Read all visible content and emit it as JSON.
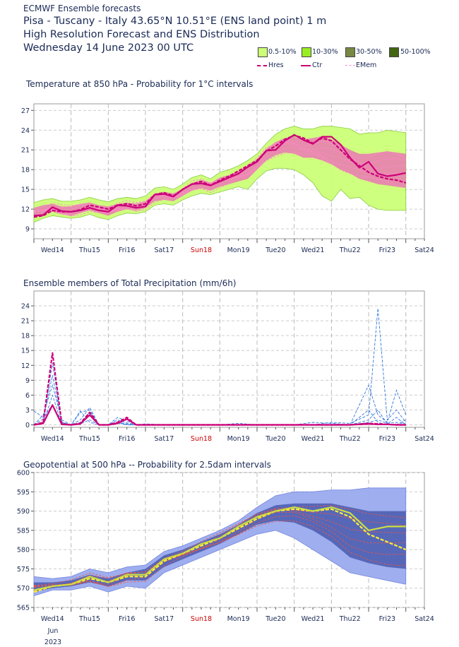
{
  "header": {
    "source": "ECMWF Ensemble forecasts",
    "location": "Pisa - Tuscany - Italy 43.65°N 10.51°E (ENS land point) 1 m",
    "subtitle": "High Resolution Forecast and ENS Distribution",
    "date": "Wednesday 14 June 2023 00 UTC"
  },
  "legend": {
    "prob_bands": [
      {
        "label": "0.5-10%",
        "color": "#ccff77"
      },
      {
        "label": "10-30%",
        "color": "#99ee22"
      },
      {
        "label": "30-50%",
        "color": "#778844"
      },
      {
        "label": "50-100%",
        "color": "#446611"
      }
    ],
    "lines": [
      {
        "label": "Hres",
        "color": "#cc0077",
        "style": "dashed"
      },
      {
        "label": "Ctr",
        "color": "#cc0077",
        "style": "solid"
      },
      {
        "label": "EMem",
        "color": "#ff88cc",
        "style": "dashed"
      }
    ]
  },
  "days": [
    "Wed14",
    "Thu15",
    "Fri16",
    "Sat17",
    "Sun18",
    "Mon19",
    "Tue20",
    "Wed21",
    "Thu22",
    "Fri23",
    "Sat24"
  ],
  "highlight_day": "Sun18",
  "highlight_color": "#cc0000",
  "date_footer": {
    "month": "Jun",
    "year": "2023"
  },
  "chart_data": [
    {
      "type": "line",
      "title": "Temperature at 850 hPa - Probability for 1°C intervals",
      "yticks": [
        9,
        12,
        15,
        18,
        21,
        24,
        27
      ],
      "ylim": [
        7.5,
        28
      ],
      "xlim": [
        0,
        10.5
      ],
      "band_color": "#ccff77",
      "band_core_color": "#ee66bb",
      "x": [
        0,
        0.25,
        0.5,
        0.75,
        1,
        1.25,
        1.5,
        1.75,
        2,
        2.25,
        2.5,
        2.75,
        3,
        3.25,
        3.5,
        3.75,
        4,
        4.25,
        4.5,
        4.75,
        5,
        5.25,
        5.5,
        5.75,
        6,
        6.25,
        6.5,
        6.75,
        7,
        7.25,
        7.5,
        7.75,
        8,
        8.25,
        8.5,
        8.75,
        9,
        9.25,
        9.5,
        9.75,
        10
      ],
      "band_low": [
        10.0,
        10.6,
        11.0,
        10.8,
        10.6,
        10.8,
        11.2,
        10.7,
        10.4,
        11.0,
        11.4,
        11.3,
        11.6,
        12.6,
        12.8,
        12.6,
        13.4,
        14.0,
        14.4,
        14.2,
        14.6,
        15.0,
        15.4,
        15.0,
        16.6,
        17.8,
        18.2,
        18.2,
        18.0,
        17.2,
        16.0,
        14.0,
        13.2,
        15.0,
        13.6,
        13.8,
        12.6,
        12.0,
        11.8,
        11.8,
        11.8
      ],
      "band_high": [
        13.0,
        13.4,
        13.6,
        13.2,
        13.2,
        13.4,
        13.8,
        13.4,
        13.1,
        13.6,
        13.8,
        13.6,
        14.0,
        15.2,
        15.4,
        15.0,
        15.8,
        16.8,
        17.2,
        16.6,
        17.6,
        18.0,
        18.6,
        19.4,
        20.4,
        22.0,
        23.4,
        24.2,
        24.6,
        24.2,
        24.2,
        24.6,
        24.6,
        24.4,
        24.2,
        23.4,
        23.6,
        23.6,
        24.0,
        23.8,
        23.6
      ],
      "core_low": [
        10.8,
        11.2,
        11.6,
        11.2,
        11.0,
        11.4,
        11.8,
        11.4,
        11.0,
        11.6,
        12.0,
        11.8,
        12.2,
        13.2,
        13.4,
        13.2,
        14.0,
        14.8,
        15.2,
        14.8,
        15.4,
        15.8,
        16.2,
        16.6,
        18.0,
        19.4,
        20.2,
        20.6,
        20.4,
        19.8,
        19.8,
        19.4,
        18.8,
        18.0,
        17.4,
        16.6,
        16.2,
        15.8,
        15.6,
        15.4,
        15.2
      ],
      "core_high": [
        12.2,
        12.6,
        12.8,
        12.4,
        12.4,
        12.8,
        13.0,
        12.6,
        12.4,
        12.8,
        13.0,
        12.8,
        13.2,
        14.4,
        14.6,
        14.4,
        15.0,
        16.0,
        16.4,
        16.0,
        16.8,
        17.2,
        17.8,
        18.6,
        19.6,
        21.2,
        22.2,
        22.8,
        23.0,
        22.6,
        22.8,
        23.0,
        22.6,
        21.8,
        21.0,
        20.4,
        20.4,
        20.6,
        20.8,
        20.6,
        20.4
      ],
      "series": [
        {
          "name": "Hres",
          "color": "#cc0077",
          "style": "dashed",
          "values": [
            10.8,
            11.0,
            11.8,
            11.6,
            11.6,
            11.9,
            12.6,
            12.3,
            12.0,
            12.6,
            12.8,
            12.5,
            12.8,
            14.2,
            14.5,
            14.0,
            15.0,
            15.8,
            16.2,
            15.6,
            16.4,
            17.0,
            17.8,
            18.6,
            19.4,
            20.8,
            21.6,
            22.6,
            23.2,
            22.8,
            22.0,
            22.8,
            22.4,
            21.0,
            19.6,
            18.6,
            17.6,
            17.0,
            16.6,
            16.4,
            16.0
          ]
        },
        {
          "name": "Ctr",
          "color": "#cc0077",
          "style": "solid",
          "values": [
            11.0,
            11.1,
            12.3,
            11.7,
            11.6,
            11.8,
            12.2,
            11.8,
            11.6,
            12.6,
            12.5,
            12.2,
            12.4,
            14.2,
            14.3,
            13.9,
            15.0,
            15.8,
            15.9,
            15.6,
            16.2,
            16.8,
            17.4,
            18.4,
            19.2,
            20.9,
            21.0,
            22.4,
            23.3,
            22.5,
            21.9,
            23.0,
            23.0,
            21.8,
            19.8,
            18.3,
            19.2,
            17.4,
            17.0,
            17.2,
            17.5
          ]
        }
      ]
    },
    {
      "type": "line",
      "title": "Ensemble members of Total Precipitation (mm/6h)",
      "yticks": [
        0,
        3,
        6,
        9,
        12,
        15,
        18,
        21,
        24
      ],
      "ylim": [
        -0.5,
        27
      ],
      "xlim": [
        0,
        10.5
      ],
      "ens_color": "#3377dd",
      "x": [
        0,
        0.25,
        0.5,
        0.75,
        1,
        1.25,
        1.5,
        1.75,
        2,
        2.25,
        2.5,
        2.75,
        3,
        3.5,
        4,
        4.5,
        5,
        5.5,
        6,
        6.5,
        7,
        7.5,
        8,
        8.5,
        9,
        9.25,
        9.5,
        9.75,
        10
      ],
      "members": [
        [
          0,
          0.5,
          12.5,
          0.3,
          0,
          0.5,
          2.5,
          0,
          0,
          1.0,
          0.4,
          0,
          0,
          0,
          0,
          0,
          0,
          0,
          0,
          0,
          0,
          0,
          0,
          0,
          8.0,
          2.0,
          0.5,
          7.0,
          2.0
        ],
        [
          0,
          1.2,
          10.0,
          0.5,
          0,
          1.0,
          3.5,
          0,
          0,
          1.5,
          0.8,
          0,
          0,
          0,
          0,
          0,
          0,
          0,
          0,
          0,
          0,
          0,
          0.5,
          0.3,
          2.0,
          23.5,
          1.0,
          3.0,
          0.5
        ],
        [
          0,
          2.0,
          8.0,
          1.0,
          0,
          2.5,
          3.0,
          0,
          0,
          0.5,
          0.2,
          0,
          0,
          0,
          0,
          0,
          0,
          0,
          0,
          0,
          0,
          0,
          0,
          0,
          1.0,
          3.0,
          0.2,
          1.5,
          0.0
        ],
        [
          0,
          0.3,
          6.0,
          0.2,
          0,
          0.2,
          1.0,
          0,
          0,
          0.3,
          0.1,
          0,
          0.2,
          0,
          0.1,
          0,
          0,
          0.3,
          0,
          0,
          0,
          0.5,
          0.3,
          0,
          0.5,
          1.0,
          0.3,
          0.5,
          0.2
        ],
        [
          2.8,
          1.5,
          4.0,
          0.5,
          0,
          2.8,
          0.5,
          0,
          0,
          0.5,
          0,
          0,
          0,
          0,
          0,
          0,
          0,
          0,
          0,
          0,
          0,
          0,
          0,
          0,
          3.0,
          0.5,
          0,
          0,
          1.0
        ]
      ],
      "series": [
        {
          "name": "Hres",
          "color": "#cc0077",
          "style": "dashed",
          "values": [
            0,
            0.5,
            14.5,
            0.2,
            0,
            0.3,
            2.5,
            0,
            0,
            0.5,
            1.5,
            0,
            0,
            0,
            0,
            0,
            0,
            0,
            0,
            0,
            0,
            0,
            0,
            0,
            0.3,
            0.2,
            0.1,
            0,
            0
          ]
        },
        {
          "name": "Ctr",
          "color": "#cc0077",
          "style": "solid",
          "values": [
            0,
            0.3,
            4.0,
            0.1,
            0,
            0.2,
            2.0,
            0,
            0,
            0.3,
            1.2,
            0,
            0,
            0,
            0,
            0,
            0,
            0,
            0,
            0,
            0,
            0,
            0,
            0,
            0.2,
            0.1,
            0.1,
            0,
            0
          ]
        }
      ]
    },
    {
      "type": "line",
      "title": "Geopotential at 500 hPa -- Probability for 2.5dam intervals",
      "yticks": [
        565,
        570,
        575,
        580,
        585,
        590,
        595,
        600
      ],
      "ylim": [
        565,
        600
      ],
      "xlim": [
        0,
        10.5
      ],
      "band_color": "#99aaee",
      "band_core_color": "#4455aa",
      "x": [
        0,
        0.5,
        1,
        1.5,
        2,
        2.5,
        3,
        3.5,
        4,
        4.5,
        5,
        5.5,
        6,
        6.5,
        7,
        7.5,
        8,
        8.5,
        9,
        9.5,
        10
      ],
      "band_low": [
        568.0,
        569.5,
        569.5,
        570.5,
        569.0,
        570.5,
        570.0,
        574.0,
        576.0,
        578.0,
        580.0,
        582.0,
        584.0,
        585.0,
        583.0,
        580.0,
        577.0,
        574.0,
        573.0,
        572.0,
        571.0
      ],
      "band_high": [
        573.0,
        572.5,
        573.0,
        575.0,
        574.0,
        575.5,
        576.0,
        579.5,
        581.0,
        583.0,
        585.0,
        587.5,
        591.0,
        594.0,
        595.0,
        595.0,
        595.5,
        595.5,
        596.0,
        596.0,
        596.0
      ],
      "core_low": [
        569.0,
        570.0,
        570.5,
        571.5,
        570.5,
        572.0,
        572.0,
        575.5,
        577.5,
        579.5,
        581.5,
        584.0,
        586.5,
        587.5,
        587.0,
        585.0,
        582.0,
        578.0,
        576.5,
        575.5,
        575.0
      ],
      "core_high": [
        571.5,
        571.5,
        572.0,
        573.5,
        572.5,
        574.0,
        575.0,
        578.5,
        580.0,
        582.0,
        584.0,
        586.5,
        589.5,
        591.5,
        592.0,
        592.0,
        592.0,
        591.0,
        590.0,
        590.0,
        590.0
      ],
      "series": [
        {
          "name": "Hres",
          "color": "#ffee33",
          "style": "dashed",
          "values": [
            569.0,
            570.5,
            571.0,
            572.5,
            571.5,
            573.0,
            573.0,
            577.0,
            579.0,
            581.0,
            583.0,
            585.5,
            588.0,
            590.0,
            590.5,
            590.0,
            590.5,
            588.5,
            584.0,
            582.0,
            580.0
          ]
        },
        {
          "name": "Ctr",
          "color": "#ccdd44",
          "style": "solid",
          "values": [
            569.5,
            570.5,
            571.0,
            573.0,
            571.5,
            573.5,
            573.5,
            577.5,
            579.0,
            581.5,
            583.0,
            586.0,
            588.5,
            590.0,
            591.0,
            590.0,
            591.0,
            589.5,
            585.0,
            586.0,
            586.0
          ]
        }
      ]
    }
  ]
}
